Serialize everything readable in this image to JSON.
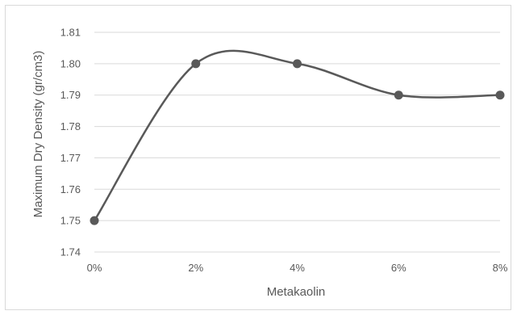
{
  "chart_data": {
    "type": "line",
    "smooth": true,
    "categories": [
      "0%",
      "2%",
      "4%",
      "6%",
      "8%"
    ],
    "series": [
      {
        "values": [
          1.75,
          1.8,
          1.8,
          1.79,
          1.79
        ]
      }
    ],
    "xlabel": "Metakaolin",
    "ylabel": "Maximum Dry Density (gr/cm3)",
    "ylim": [
      1.74,
      1.81
    ],
    "yticks": [
      "1.74",
      "1.75",
      "1.76",
      "1.77",
      "1.78",
      "1.79",
      "1.80",
      "1.81"
    ],
    "grid": true,
    "legend": "none",
    "colors": {
      "line": "#595959",
      "marker": "#595959",
      "grid": "#d9d9d9"
    }
  }
}
